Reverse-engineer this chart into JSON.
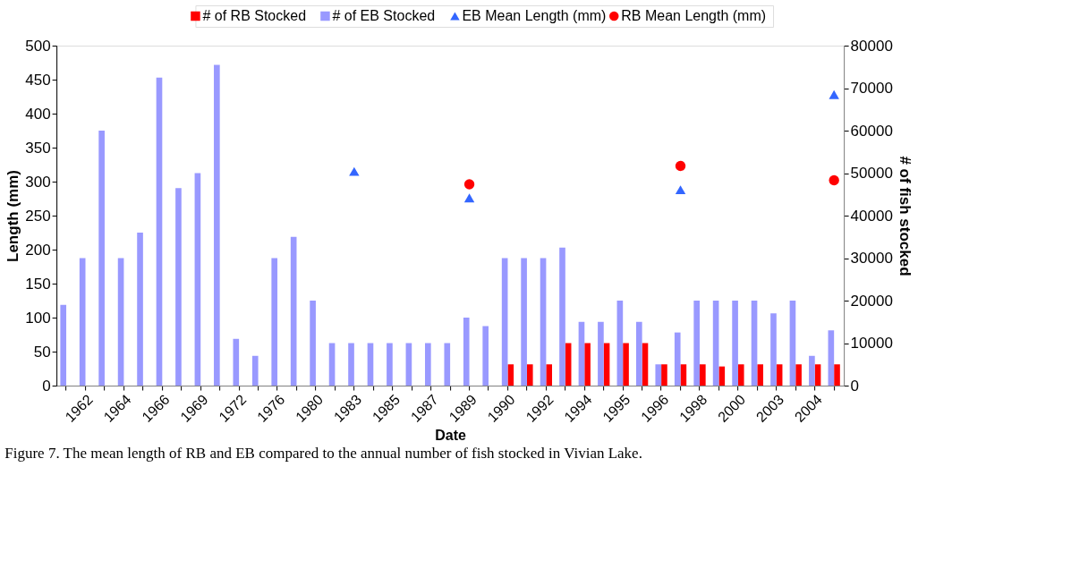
{
  "chart_data": {
    "type": "bar",
    "xlabel": "Date",
    "ylabel": "Length (mm)",
    "y2label": "# of fish stocked",
    "annotations": [
      "Figure 7.  The mean length of RB and EB compared to the annual number of fish stocked in Vivian Lake."
    ],
    "categories": [
      null,
      "1962",
      null,
      "1964",
      null,
      "1966",
      null,
      "1969",
      null,
      "1972",
      null,
      "1976",
      null,
      "1980",
      null,
      "1983",
      null,
      "1985",
      null,
      "1987",
      null,
      "1989",
      null,
      "1990",
      null,
      "1992",
      null,
      "1994",
      null,
      "1995",
      null,
      "1996",
      null,
      "1998",
      null,
      "2000",
      null,
      "2003",
      null,
      "2004",
      null
    ],
    "series": [
      {
        "name": "# of RB Stocked",
        "axis": "y2",
        "color": "#ff0000",
        "values": [
          null,
          null,
          null,
          null,
          null,
          null,
          null,
          null,
          null,
          null,
          null,
          null,
          null,
          null,
          null,
          null,
          null,
          null,
          null,
          null,
          null,
          null,
          null,
          5000,
          5000,
          5000,
          10000,
          10000,
          10000,
          10000,
          10000,
          5000,
          5000,
          5000,
          4500,
          5000,
          5000,
          5000,
          5000,
          5000,
          5000
        ]
      },
      {
        "name": "# of EB Stocked",
        "axis": "y2",
        "color": "#9999ff",
        "values": [
          19000,
          30000,
          60000,
          30000,
          36000,
          72500,
          46500,
          50000,
          75500,
          11000,
          7000,
          30000,
          35000,
          20000,
          10000,
          10000,
          10000,
          10000,
          10000,
          10000,
          10000,
          16000,
          14000,
          30000,
          30000,
          30000,
          32500,
          15000,
          15000,
          20000,
          15000,
          5000,
          12500,
          20000,
          20000,
          20000,
          20000,
          17000,
          20000,
          7000,
          13000
        ]
      },
      {
        "name": "EB Mean Length (mm)",
        "type": "scatter",
        "marker": "triangle",
        "color": "#3366ff",
        "values": [
          null,
          null,
          null,
          null,
          null,
          null,
          null,
          null,
          null,
          null,
          null,
          null,
          null,
          null,
          null,
          315,
          null,
          null,
          null,
          null,
          null,
          276,
          null,
          null,
          null,
          null,
          null,
          null,
          null,
          null,
          null,
          null,
          288,
          null,
          null,
          null,
          null,
          null,
          null,
          null,
          428
        ]
      },
      {
        "name": "RB Mean Length (mm)",
        "type": "scatter",
        "marker": "circle",
        "color": "#ff0000",
        "values": [
          null,
          null,
          null,
          null,
          null,
          null,
          null,
          null,
          null,
          null,
          null,
          null,
          null,
          null,
          null,
          null,
          null,
          null,
          null,
          null,
          null,
          296,
          null,
          null,
          null,
          null,
          null,
          null,
          null,
          null,
          null,
          null,
          323,
          null,
          null,
          null,
          null,
          null,
          null,
          null,
          302
        ]
      }
    ],
    "ylim": [
      0,
      500
    ],
    "yticks": [
      0,
      50,
      100,
      150,
      200,
      250,
      300,
      350,
      400,
      450,
      500
    ],
    "y2lim": [
      0,
      80000
    ],
    "y2ticks": [
      0,
      10000,
      20000,
      30000,
      40000,
      50000,
      60000,
      70000,
      80000
    ],
    "grid": false,
    "legend": "top"
  }
}
